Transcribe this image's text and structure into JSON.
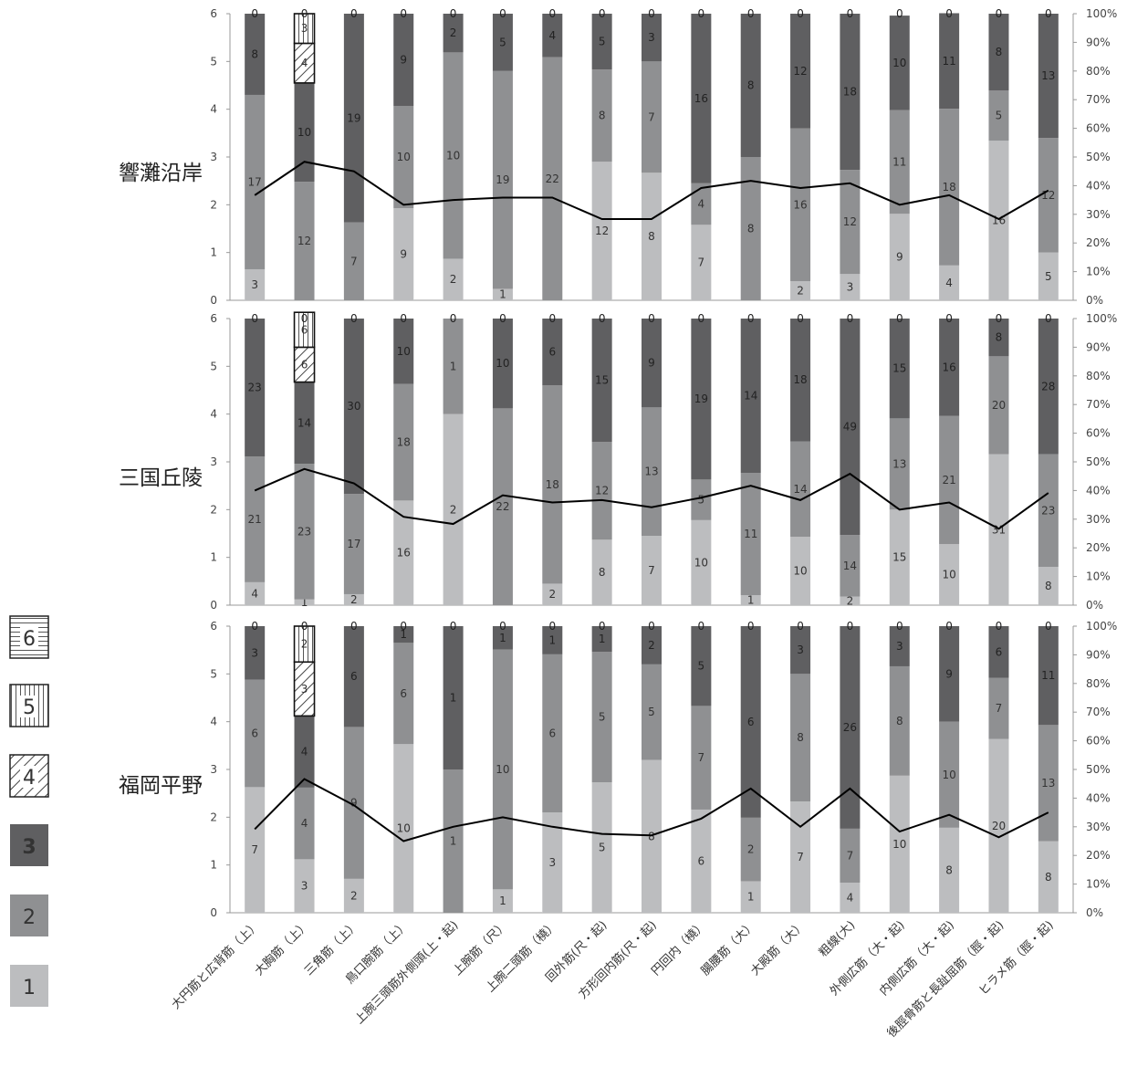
{
  "chart_data": {
    "type": "bar",
    "stacked": true,
    "categories": [
      "大円筋と広背筋（上）",
      "大胸筋（上）",
      "三角筋（上）",
      "鳥口腕筋（上）",
      "上腕三頭筋外側頭(上・起)",
      "上腕筋（尺）",
      "上腕二頭筋（橈）",
      "回外筋(尺・起)",
      "方形回内筋(尺・起)",
      "円回内（橈）",
      "腸腰筋（大）",
      "大殿筋（大）",
      "粗線(大)",
      "外側広筋（大・起)",
      "内側広筋（大・起)",
      "後脛骨筋と長趾屈筋（脛・起)",
      "ヒラメ筋（脛・起)"
    ],
    "left_ylim": [
      0,
      6
    ],
    "left_yticks": [
      "0",
      "1",
      "2",
      "3",
      "4",
      "5",
      "6"
    ],
    "right_ylim": [
      0,
      100
    ],
    "right_yticks": [
      "0%",
      "10%",
      "20%",
      "30%",
      "40%",
      "50%",
      "60%",
      "70%",
      "80%",
      "90%",
      "100%"
    ],
    "grid": false,
    "legend": {
      "position": "left",
      "items": [
        {
          "label": "6",
          "color": "#ffffff",
          "pattern": "horizontal-lines"
        },
        {
          "label": "5",
          "color": "#ffffff",
          "pattern": "vertical-lines"
        },
        {
          "label": "4",
          "color": "#ffffff",
          "pattern": "diagonal-lines"
        },
        {
          "label": "3",
          "color": "#5f5f61"
        },
        {
          "label": "2",
          "color": "#8f9092"
        },
        {
          "label": "1",
          "color": "#bcbdbf"
        }
      ]
    },
    "panels": [
      {
        "title": "響灘沿岸",
        "series": [
          {
            "name": "1",
            "counts": [
              3,
              0,
              0,
              9,
              2,
              1,
              0,
              12,
              8,
              7,
              0,
              2,
              3,
              9,
              4,
              16,
              5
            ],
            "heights": [
              0.65,
              0,
              0,
              1.93,
              0.87,
              0.24,
              0,
              2.9,
              2.67,
              1.58,
              0,
              0.4,
              0.55,
              1.81,
              0.73,
              3.34,
              1.0
            ]
          },
          {
            "name": "2",
            "counts": [
              17,
              12,
              7,
              10,
              10,
              19,
              22,
              8,
              7,
              4,
              8,
              16,
              12,
              11,
              18,
              5,
              12
            ],
            "heights": [
              3.65,
              2.48,
              1.63,
              2.14,
              4.32,
              4.56,
              5.09,
              1.93,
              2.33,
              0.87,
              3.0,
              3.2,
              2.18,
              2.17,
              3.28,
              1.05,
              2.4
            ]
          },
          {
            "name": "3",
            "counts": [
              8,
              10,
              19,
              9,
              2,
              5,
              4,
              5,
              3,
              16,
              8,
              12,
              18,
              10,
              11,
              8,
              13
            ],
            "heights": [
              1.7,
              2.07,
              4.37,
              1.93,
              0.81,
              1.2,
              0.91,
              1.17,
              1.0,
              3.55,
              3.0,
              2.4,
              3.27,
              1.98,
              2.0,
              1.61,
              2.6
            ]
          },
          {
            "name": "4",
            "counts": [
              0,
              4,
              0,
              0,
              0,
              0,
              0,
              0,
              0,
              0,
              0,
              0,
              0,
              0,
              0,
              0,
              0
            ],
            "heights": [
              0,
              0.83,
              0,
              0,
              0,
              0,
              0,
              0,
              0,
              0,
              0,
              0,
              0,
              0,
              0,
              0,
              0
            ]
          },
          {
            "name": "5",
            "counts": [
              0,
              3,
              0,
              0,
              0,
              0,
              0,
              0,
              0,
              0,
              0,
              0,
              0,
              0,
              0,
              0,
              0
            ],
            "heights": [
              0,
              0.62,
              0,
              0,
              0,
              0,
              0,
              0,
              0,
              0,
              0,
              0,
              0,
              0,
              0,
              0,
              0
            ]
          },
          {
            "name": "6",
            "counts": [
              0,
              0,
              0,
              0,
              0,
              0,
              0,
              0,
              0,
              0,
              0,
              0,
              0,
              0,
              0,
              0,
              0
            ],
            "heights": [
              0,
              0,
              0,
              0,
              0,
              0,
              0,
              0,
              0,
              0,
              0,
              0,
              0,
              0,
              0,
              0,
              0
            ]
          }
        ],
        "line": [
          2.2,
          2.9,
          2.7,
          2.0,
          2.1,
          2.15,
          2.15,
          1.7,
          1.7,
          2.35,
          2.5,
          2.35,
          2.45,
          2.0,
          2.2,
          1.7,
          2.3
        ]
      },
      {
        "title": "三国丘陵",
        "series": [
          {
            "name": "1",
            "counts": [
              4,
              1,
              2,
              16,
              2,
              0,
              2,
              8,
              7,
              10,
              1,
              10,
              2,
              15,
              10,
              31,
              8
            ],
            "heights": [
              0.48,
              0.12,
              0.23,
              2.19,
              4.0,
              0,
              0.45,
              1.37,
              1.45,
              1.78,
              0.21,
              1.43,
              0.18,
              2.0,
              1.28,
              3.16,
              0.8
            ]
          },
          {
            "name": "2",
            "counts": [
              21,
              23,
              17,
              18,
              1,
              22,
              18,
              12,
              13,
              5,
              11,
              14,
              14,
              13,
              21,
              20,
              23
            ],
            "heights": [
              2.63,
              2.84,
              2.1,
              2.44,
              2.0,
              4.12,
              4.15,
              2.05,
              2.69,
              0.85,
              2.56,
              2.0,
              1.29,
              1.91,
              2.68,
              2.05,
              2.36
            ]
          },
          {
            "name": "3",
            "counts": [
              23,
              14,
              30,
              10,
              0,
              10,
              6,
              15,
              9,
              19,
              14,
              18,
              49,
              15,
              16,
              8,
              28
            ],
            "heights": [
              2.89,
              1.71,
              3.67,
              1.37,
              0,
              1.88,
              1.4,
              2.58,
              1.86,
              3.37,
              3.23,
              2.57,
              4.53,
              2.09,
              2.04,
              0.79,
              2.84
            ]
          },
          {
            "name": "4",
            "counts": [
              0,
              6,
              0,
              0,
              0,
              0,
              0,
              0,
              0,
              0,
              0,
              0,
              0,
              0,
              0,
              0,
              0
            ],
            "heights": [
              0,
              0.73,
              0,
              0,
              0,
              0,
              0,
              0,
              0,
              0,
              0,
              0,
              0,
              0,
              0,
              0,
              0
            ]
          },
          {
            "name": "5",
            "counts": [
              0,
              6,
              0,
              0,
              0,
              0,
              0,
              0,
              0,
              0,
              0,
              0,
              0,
              0,
              0,
              0,
              0
            ],
            "heights": [
              0,
              0.73,
              0,
              0,
              0,
              0,
              0,
              0,
              0,
              0,
              0,
              0,
              0,
              0,
              0,
              0,
              0
            ]
          },
          {
            "name": "6",
            "counts": [
              0,
              0,
              0,
              0,
              0,
              0,
              0,
              0,
              0,
              0,
              0,
              0,
              0,
              0,
              0,
              0,
              0
            ],
            "heights": [
              0,
              0,
              0,
              0,
              0,
              0,
              0,
              0,
              0,
              0,
              0,
              0,
              0,
              0,
              0,
              0,
              0
            ]
          }
        ],
        "line": [
          2.4,
          2.85,
          2.55,
          1.85,
          1.7,
          2.3,
          2.15,
          2.2,
          2.05,
          2.25,
          2.5,
          2.2,
          2.75,
          2.0,
          2.15,
          1.6,
          2.35
        ]
      },
      {
        "title": "福岡平野",
        "series": [
          {
            "name": "1",
            "counts": [
              7,
              3,
              2,
              10,
              0,
              1,
              3,
              5,
              8,
              6,
              1,
              7,
              4,
              10,
              8,
              20,
              8
            ],
            "heights": [
              2.63,
              1.12,
              0.71,
              3.53,
              0,
              0.49,
              2.1,
              2.73,
              3.2,
              2.16,
              0.66,
              2.33,
              0.63,
              2.87,
              1.78,
              3.64,
              1.5
            ]
          },
          {
            "name": "2",
            "counts": [
              6,
              4,
              9,
              6,
              1,
              10,
              6,
              5,
              5,
              7,
              2,
              8,
              7,
              8,
              10,
              7,
              13
            ],
            "heights": [
              2.25,
              1.5,
              3.18,
              2.12,
              3.0,
              5.02,
              3.31,
              2.73,
              2.0,
              2.17,
              1.33,
              2.67,
              1.13,
              2.29,
              2.22,
              1.28,
              2.43
            ]
          },
          {
            "name": "3",
            "counts": [
              3,
              4,
              6,
              1,
              1,
              1,
              1,
              1,
              2,
              5,
              6,
              3,
              26,
              3,
              9,
              6,
              11
            ],
            "heights": [
              1.12,
              1.5,
              2.11,
              0.35,
              3.0,
              0.49,
              0.59,
              0.54,
              0.8,
              1.67,
              4.01,
              1.0,
              4.24,
              0.84,
              2.0,
              1.08,
              2.07
            ]
          },
          {
            "name": "4",
            "counts": [
              0,
              3,
              0,
              0,
              0,
              0,
              0,
              0,
              0,
              0,
              0,
              0,
              0,
              0,
              0,
              0,
              0
            ],
            "heights": [
              0,
              1.13,
              0,
              0,
              0,
              0,
              0,
              0,
              0,
              0,
              0,
              0,
              0,
              0,
              0,
              0,
              0
            ]
          },
          {
            "name": "5",
            "counts": [
              0,
              2,
              0,
              0,
              0,
              0,
              0,
              0,
              0,
              0,
              0,
              0,
              0,
              0,
              0,
              0,
              0
            ],
            "heights": [
              0,
              0.75,
              0,
              0,
              0,
              0,
              0,
              0,
              0,
              0,
              0,
              0,
              0,
              0,
              0,
              0,
              0
            ]
          },
          {
            "name": "6",
            "counts": [
              0,
              0,
              0,
              0,
              0,
              0,
              0,
              0,
              0,
              0,
              0,
              0,
              0,
              0,
              0,
              0,
              0
            ],
            "heights": [
              0,
              0,
              0,
              0,
              0,
              0,
              0,
              0,
              0,
              0,
              0,
              0,
              0,
              0,
              0,
              0,
              0
            ]
          }
        ],
        "line": [
          1.75,
          2.8,
          2.25,
          1.5,
          1.8,
          2.0,
          1.8,
          1.65,
          1.62,
          1.97,
          2.6,
          1.8,
          2.6,
          1.7,
          2.05,
          1.58,
          2.1
        ]
      }
    ]
  }
}
